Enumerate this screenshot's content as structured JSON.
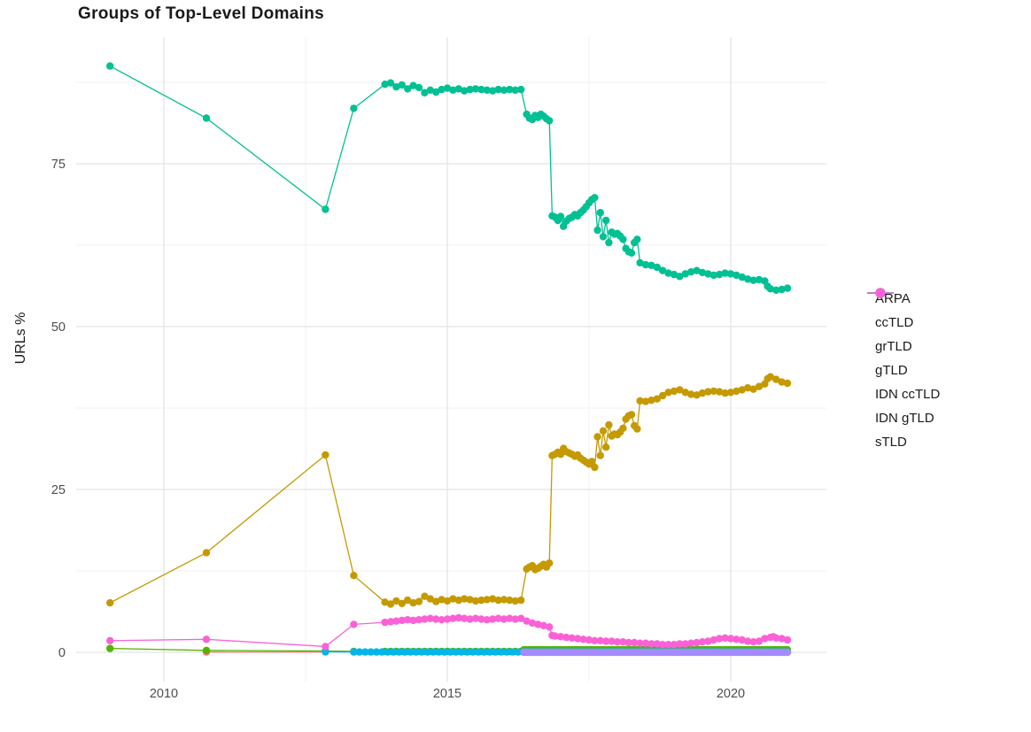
{
  "page": {
    "title": "Groups of Top-Level Domains"
  },
  "chart_data": {
    "type": "line",
    "title": "Groups of Top-Level Domains",
    "xlabel": "",
    "ylabel": "URLs %",
    "x_ticks": [
      2010,
      2015,
      2020
    ],
    "x_minor_ticks": [
      2012.5,
      2017.5
    ],
    "y_ticks": [
      0,
      25,
      50,
      75
    ],
    "y_minor_ticks": [
      12.5,
      37.5,
      62.5,
      87.5
    ],
    "xlim": [
      2008.48,
      2021.7
    ],
    "ylim": [
      -4.5,
      94.5
    ],
    "grid": true,
    "legend_position": "right",
    "series": [
      {
        "name": "ARPA",
        "color": "#F8766D",
        "points": [
          [
            2010.75,
            0.05
          ],
          [
            2012.85,
            0.05
          ]
        ]
      },
      {
        "name": "ccTLD",
        "color": "#C49A00",
        "points": [
          [
            2009.05,
            7.6
          ],
          [
            2010.75,
            15.3
          ],
          [
            2012.85,
            30.3
          ],
          [
            2013.35,
            11.8
          ],
          [
            2013.9,
            7.7
          ],
          [
            2014.0,
            7.4
          ],
          [
            2014.1,
            7.9
          ],
          [
            2014.2,
            7.5
          ],
          [
            2014.3,
            8.0
          ],
          [
            2014.4,
            7.6
          ],
          [
            2014.5,
            7.8
          ],
          [
            2014.6,
            8.6
          ],
          [
            2014.7,
            8.2
          ],
          [
            2014.8,
            7.8
          ],
          [
            2014.9,
            8.1
          ],
          [
            2015.0,
            7.9
          ],
          [
            2015.1,
            8.2
          ],
          [
            2015.2,
            8.0
          ],
          [
            2015.3,
            8.2
          ],
          [
            2015.4,
            8.1
          ],
          [
            2015.5,
            7.9
          ],
          [
            2015.6,
            8.0
          ],
          [
            2015.7,
            8.1
          ],
          [
            2015.8,
            8.2
          ],
          [
            2015.9,
            8.0
          ],
          [
            2016.0,
            8.1
          ],
          [
            2016.1,
            8.0
          ],
          [
            2016.2,
            7.9
          ],
          [
            2016.3,
            8.0
          ],
          [
            2016.4,
            12.8
          ],
          [
            2016.45,
            13.1
          ],
          [
            2016.5,
            13.3
          ],
          [
            2016.55,
            12.7
          ],
          [
            2016.6,
            12.9
          ],
          [
            2016.65,
            13.2
          ],
          [
            2016.7,
            13.5
          ],
          [
            2016.75,
            13.1
          ],
          [
            2016.8,
            13.7
          ],
          [
            2016.85,
            30.2
          ],
          [
            2016.9,
            30.4
          ],
          [
            2016.95,
            30.7
          ],
          [
            2017.0,
            30.4
          ],
          [
            2017.05,
            31.3
          ],
          [
            2017.1,
            30.8
          ],
          [
            2017.15,
            30.6
          ],
          [
            2017.2,
            30.4
          ],
          [
            2017.25,
            30.1
          ],
          [
            2017.3,
            30.3
          ],
          [
            2017.35,
            29.8
          ],
          [
            2017.4,
            29.5
          ],
          [
            2017.45,
            29.2
          ],
          [
            2017.5,
            28.9
          ],
          [
            2017.55,
            29.3
          ],
          [
            2017.6,
            28.4
          ],
          [
            2017.65,
            33.1
          ],
          [
            2017.7,
            30.2
          ],
          [
            2017.75,
            34.0
          ],
          [
            2017.8,
            31.5
          ],
          [
            2017.85,
            34.9
          ],
          [
            2017.9,
            33.2
          ],
          [
            2017.95,
            33.5
          ],
          [
            2018.0,
            33.4
          ],
          [
            2018.05,
            33.8
          ],
          [
            2018.1,
            34.4
          ],
          [
            2018.15,
            35.8
          ],
          [
            2018.2,
            36.3
          ],
          [
            2018.25,
            36.5
          ],
          [
            2018.3,
            34.8
          ],
          [
            2018.35,
            34.3
          ],
          [
            2018.4,
            38.6
          ],
          [
            2018.5,
            38.5
          ],
          [
            2018.6,
            38.7
          ],
          [
            2018.7,
            38.9
          ],
          [
            2018.8,
            39.4
          ],
          [
            2018.9,
            39.9
          ],
          [
            2019.0,
            40.1
          ],
          [
            2019.1,
            40.3
          ],
          [
            2019.2,
            39.9
          ],
          [
            2019.3,
            39.6
          ],
          [
            2019.4,
            39.5
          ],
          [
            2019.5,
            39.8
          ],
          [
            2019.6,
            40.0
          ],
          [
            2019.7,
            40.1
          ],
          [
            2019.8,
            40.0
          ],
          [
            2019.9,
            39.8
          ],
          [
            2020.0,
            39.9
          ],
          [
            2020.1,
            40.1
          ],
          [
            2020.2,
            40.3
          ],
          [
            2020.3,
            40.6
          ],
          [
            2020.4,
            40.4
          ],
          [
            2020.5,
            40.8
          ],
          [
            2020.6,
            41.2
          ],
          [
            2020.65,
            42.0
          ],
          [
            2020.7,
            42.3
          ],
          [
            2020.8,
            41.9
          ],
          [
            2020.9,
            41.5
          ],
          [
            2021.0,
            41.3
          ]
        ]
      },
      {
        "name": "grTLD",
        "color": "#53B400",
        "points": [
          [
            2009.05,
            0.6
          ],
          [
            2010.75,
            0.3
          ],
          [
            2012.85,
            0.2
          ],
          [
            2013.35,
            0.15
          ]
        ],
        "runs": [
          {
            "from": 2013.9,
            "to": 2016.3,
            "step": 0.1,
            "value": 0.15
          },
          {
            "from": 2016.35,
            "to": 2021.0,
            "step": 0.05,
            "value": 0.4
          }
        ]
      },
      {
        "name": "gTLD",
        "color": "#00C094",
        "points": [
          [
            2009.05,
            90.0
          ],
          [
            2010.75,
            82.0
          ],
          [
            2012.85,
            68.0
          ],
          [
            2013.35,
            83.5
          ],
          [
            2013.9,
            87.2
          ],
          [
            2014.0,
            87.4
          ],
          [
            2014.1,
            86.8
          ],
          [
            2014.2,
            87.1
          ],
          [
            2014.3,
            86.5
          ],
          [
            2014.4,
            87.0
          ],
          [
            2014.5,
            86.7
          ],
          [
            2014.6,
            85.9
          ],
          [
            2014.7,
            86.3
          ],
          [
            2014.8,
            86.0
          ],
          [
            2014.9,
            86.4
          ],
          [
            2015.0,
            86.6
          ],
          [
            2015.1,
            86.3
          ],
          [
            2015.2,
            86.5
          ],
          [
            2015.3,
            86.2
          ],
          [
            2015.4,
            86.4
          ],
          [
            2015.5,
            86.5
          ],
          [
            2015.6,
            86.4
          ],
          [
            2015.7,
            86.3
          ],
          [
            2015.8,
            86.2
          ],
          [
            2015.9,
            86.4
          ],
          [
            2016.0,
            86.3
          ],
          [
            2016.1,
            86.4
          ],
          [
            2016.2,
            86.3
          ],
          [
            2016.3,
            86.4
          ],
          [
            2016.4,
            82.6
          ],
          [
            2016.45,
            82.0
          ],
          [
            2016.5,
            81.8
          ],
          [
            2016.55,
            82.4
          ],
          [
            2016.6,
            82.1
          ],
          [
            2016.65,
            82.6
          ],
          [
            2016.7,
            82.3
          ],
          [
            2016.75,
            81.9
          ],
          [
            2016.8,
            81.6
          ],
          [
            2016.85,
            67.0
          ],
          [
            2016.9,
            66.8
          ],
          [
            2016.95,
            66.3
          ],
          [
            2017.0,
            66.9
          ],
          [
            2017.05,
            65.4
          ],
          [
            2017.1,
            66.2
          ],
          [
            2017.15,
            66.6
          ],
          [
            2017.2,
            66.8
          ],
          [
            2017.25,
            67.2
          ],
          [
            2017.3,
            67.0
          ],
          [
            2017.35,
            67.5
          ],
          [
            2017.4,
            67.9
          ],
          [
            2017.45,
            68.4
          ],
          [
            2017.5,
            69.0
          ],
          [
            2017.55,
            69.5
          ],
          [
            2017.6,
            69.8
          ],
          [
            2017.65,
            64.8
          ],
          [
            2017.7,
            67.5
          ],
          [
            2017.75,
            63.8
          ],
          [
            2017.8,
            66.3
          ],
          [
            2017.85,
            62.9
          ],
          [
            2017.9,
            64.5
          ],
          [
            2017.95,
            64.2
          ],
          [
            2018.0,
            64.3
          ],
          [
            2018.05,
            63.9
          ],
          [
            2018.1,
            63.4
          ],
          [
            2018.15,
            62.0
          ],
          [
            2018.2,
            61.5
          ],
          [
            2018.25,
            61.3
          ],
          [
            2018.3,
            62.9
          ],
          [
            2018.35,
            63.4
          ],
          [
            2018.4,
            59.8
          ],
          [
            2018.5,
            59.5
          ],
          [
            2018.6,
            59.4
          ],
          [
            2018.7,
            59.1
          ],
          [
            2018.8,
            58.6
          ],
          [
            2018.9,
            58.2
          ],
          [
            2019.0,
            58.0
          ],
          [
            2019.1,
            57.7
          ],
          [
            2019.2,
            58.1
          ],
          [
            2019.3,
            58.4
          ],
          [
            2019.4,
            58.6
          ],
          [
            2019.5,
            58.3
          ],
          [
            2019.6,
            58.1
          ],
          [
            2019.7,
            57.9
          ],
          [
            2019.8,
            58.0
          ],
          [
            2019.9,
            58.2
          ],
          [
            2020.0,
            58.1
          ],
          [
            2020.1,
            57.9
          ],
          [
            2020.2,
            57.6
          ],
          [
            2020.3,
            57.3
          ],
          [
            2020.4,
            57.1
          ],
          [
            2020.5,
            57.2
          ],
          [
            2020.6,
            57.0
          ],
          [
            2020.65,
            56.2
          ],
          [
            2020.7,
            55.8
          ],
          [
            2020.8,
            55.6
          ],
          [
            2020.9,
            55.7
          ],
          [
            2021.0,
            55.9
          ]
        ]
      },
      {
        "name": "IDN ccTLD",
        "color": "#00B6EB",
        "points": [
          [
            2012.85,
            0.1
          ]
        ],
        "runs": [
          {
            "from": 2013.35,
            "to": 2016.3,
            "step": 0.1,
            "value": 0.05
          },
          {
            "from": 2016.35,
            "to": 2021.0,
            "step": 0.05,
            "value": 0.05
          }
        ]
      },
      {
        "name": "IDN gTLD",
        "color": "#A58AFF",
        "points": [],
        "runs": [
          {
            "from": 2016.35,
            "to": 2021.0,
            "step": 0.05,
            "value": 0.0
          }
        ]
      },
      {
        "name": "sTLD",
        "color": "#FB61D7",
        "points": [
          [
            2009.05,
            1.8
          ],
          [
            2010.75,
            2.0
          ],
          [
            2012.85,
            0.9
          ],
          [
            2013.35,
            4.3
          ],
          [
            2013.9,
            4.6
          ],
          [
            2014.0,
            4.7
          ],
          [
            2014.1,
            4.8
          ],
          [
            2014.2,
            4.9
          ],
          [
            2014.3,
            5.0
          ],
          [
            2014.4,
            4.9
          ],
          [
            2014.5,
            5.0
          ],
          [
            2014.6,
            5.1
          ],
          [
            2014.7,
            5.2
          ],
          [
            2014.8,
            5.1
          ],
          [
            2014.9,
            5.0
          ],
          [
            2015.0,
            5.1
          ],
          [
            2015.1,
            5.2
          ],
          [
            2015.2,
            5.3
          ],
          [
            2015.3,
            5.2
          ],
          [
            2015.4,
            5.1
          ],
          [
            2015.5,
            5.2
          ],
          [
            2015.6,
            5.1
          ],
          [
            2015.7,
            5.0
          ],
          [
            2015.8,
            5.1
          ],
          [
            2015.9,
            5.2
          ],
          [
            2016.0,
            5.1
          ],
          [
            2016.1,
            5.2
          ],
          [
            2016.2,
            5.1
          ],
          [
            2016.3,
            5.2
          ],
          [
            2016.4,
            4.8
          ],
          [
            2016.5,
            4.5
          ],
          [
            2016.6,
            4.3
          ],
          [
            2016.7,
            4.1
          ],
          [
            2016.8,
            3.9
          ],
          [
            2016.85,
            2.6
          ],
          [
            2016.9,
            2.5
          ],
          [
            2017.0,
            2.4
          ],
          [
            2017.1,
            2.3
          ],
          [
            2017.2,
            2.2
          ],
          [
            2017.3,
            2.1
          ],
          [
            2017.4,
            2.0
          ],
          [
            2017.5,
            1.9
          ],
          [
            2017.6,
            1.8
          ],
          [
            2017.7,
            1.8
          ],
          [
            2017.8,
            1.7
          ],
          [
            2017.9,
            1.7
          ],
          [
            2018.0,
            1.6
          ],
          [
            2018.1,
            1.6
          ],
          [
            2018.2,
            1.5
          ],
          [
            2018.3,
            1.5
          ],
          [
            2018.4,
            1.4
          ],
          [
            2018.5,
            1.4
          ],
          [
            2018.6,
            1.3
          ],
          [
            2018.7,
            1.3
          ],
          [
            2018.8,
            1.2
          ],
          [
            2018.9,
            1.2
          ],
          [
            2019.0,
            1.2
          ],
          [
            2019.1,
            1.3
          ],
          [
            2019.2,
            1.3
          ],
          [
            2019.3,
            1.4
          ],
          [
            2019.4,
            1.5
          ],
          [
            2019.5,
            1.6
          ],
          [
            2019.6,
            1.7
          ],
          [
            2019.7,
            1.9
          ],
          [
            2019.8,
            2.1
          ],
          [
            2019.9,
            2.2
          ],
          [
            2020.0,
            2.1
          ],
          [
            2020.1,
            2.0
          ],
          [
            2020.2,
            1.9
          ],
          [
            2020.3,
            1.7
          ],
          [
            2020.4,
            1.6
          ],
          [
            2020.5,
            1.7
          ],
          [
            2020.6,
            2.1
          ],
          [
            2020.7,
            2.3
          ],
          [
            2020.75,
            2.4
          ],
          [
            2020.8,
            2.2
          ],
          [
            2020.9,
            2.1
          ],
          [
            2021.0,
            1.9
          ]
        ]
      }
    ]
  }
}
